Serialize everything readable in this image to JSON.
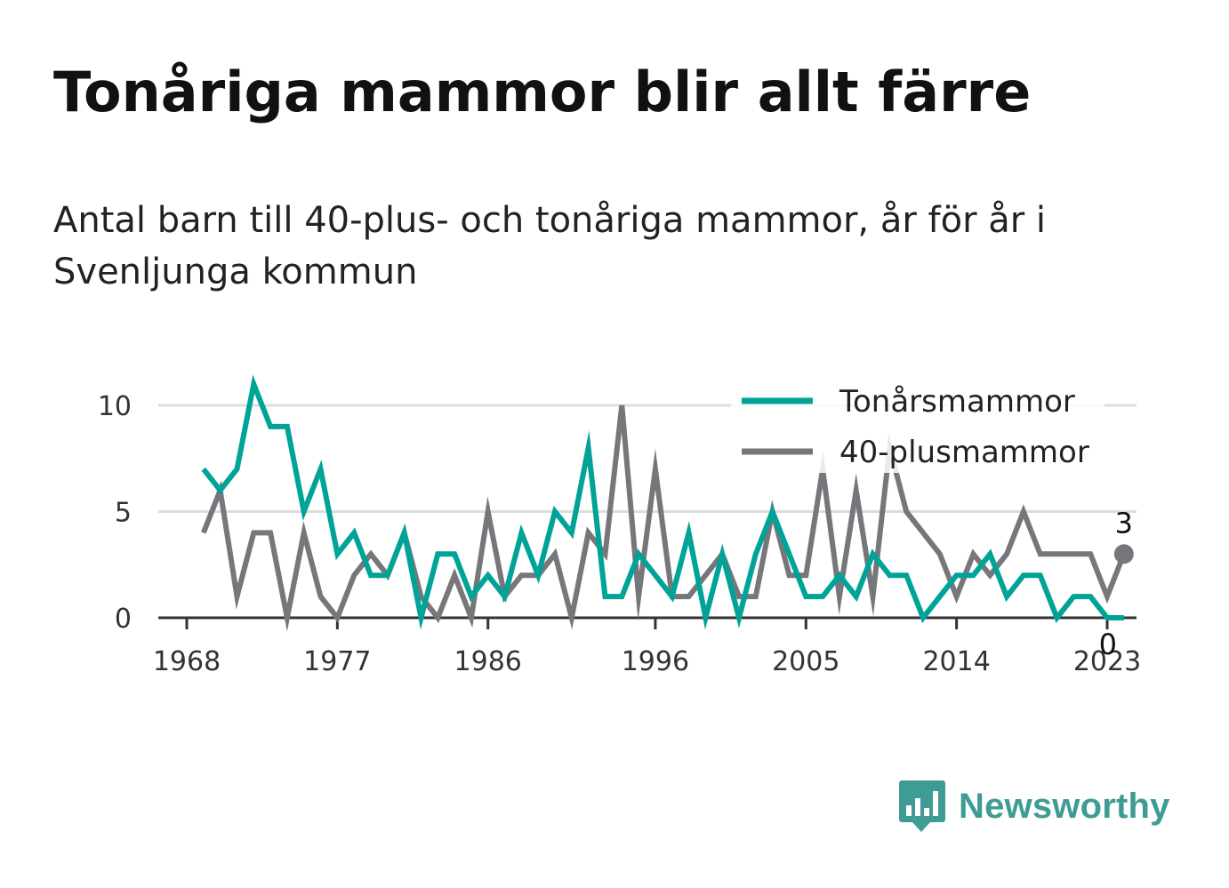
{
  "title": "Tonåriga mammor blir allt färre",
  "subtitle": "Antal barn till 40-plus- och tonåriga mammor, år för år i Svenljunga kommun",
  "logo": {
    "text": "Newsworthy",
    "color": "#3f9c95"
  },
  "chart_data": {
    "type": "line",
    "x": [
      1969,
      1970,
      1971,
      1972,
      1973,
      1974,
      1975,
      1976,
      1977,
      1978,
      1979,
      1980,
      1981,
      1982,
      1983,
      1984,
      1985,
      1986,
      1987,
      1988,
      1989,
      1990,
      1991,
      1992,
      1993,
      1994,
      1995,
      1996,
      1997,
      1998,
      1999,
      2000,
      2001,
      2002,
      2003,
      2004,
      2005,
      2006,
      2007,
      2008,
      2009,
      2010,
      2011,
      2012,
      2013,
      2014,
      2015,
      2016,
      2017,
      2018,
      2019,
      2020,
      2021,
      2022,
      2023,
      2024
    ],
    "series": [
      {
        "name": "Tonårsmammor",
        "color": "#00a398",
        "values": [
          7,
          6,
          7,
          11,
          9,
          9,
          5,
          7,
          3,
          4,
          2,
          2,
          4,
          0,
          3,
          3,
          1,
          2,
          1,
          4,
          2,
          5,
          4,
          8,
          1,
          1,
          3,
          2,
          1,
          4,
          0,
          3,
          0,
          3,
          5,
          3,
          1,
          1,
          2,
          1,
          3,
          2,
          2,
          0,
          1,
          2,
          2,
          3,
          1,
          2,
          2,
          0,
          1,
          1,
          0,
          0
        ]
      },
      {
        "name": "40-plusmammor",
        "color": "#77767b",
        "values": [
          4,
          6,
          1,
          4,
          4,
          0,
          4,
          1,
          0,
          2,
          3,
          2,
          4,
          1,
          0,
          2,
          0,
          5,
          1,
          2,
          2,
          3,
          0,
          4,
          3,
          10,
          1,
          7,
          1,
          1,
          2,
          3,
          1,
          1,
          5,
          2,
          2,
          7,
          1,
          6,
          1,
          8,
          5,
          4,
          3,
          1,
          3,
          2,
          3,
          5,
          3,
          3,
          3,
          3,
          1,
          3
        ]
      }
    ],
    "x_ticks": [
      "1968",
      "1977",
      "1986",
      "1996",
      "2005",
      "2014",
      "2023"
    ],
    "y_ticks": [
      "0",
      "5",
      "10"
    ],
    "ylim": [
      0,
      11.5
    ],
    "xlim": [
      1968,
      2026
    ],
    "grid": true,
    "legend_position": "top-right",
    "end_labels": {
      "Tonårsmammor": "0",
      "40-plusmammor": "3"
    }
  }
}
